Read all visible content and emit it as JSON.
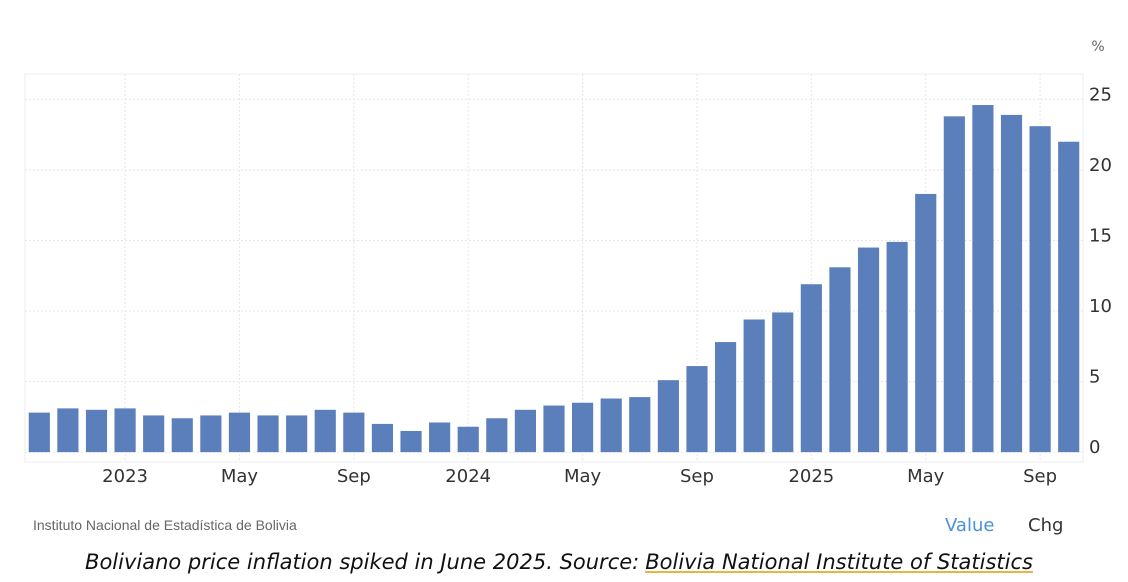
{
  "chart_data": {
    "type": "bar",
    "unit": "%",
    "categories": [
      null,
      null,
      null,
      "2023",
      null,
      null,
      null,
      "May",
      null,
      null,
      null,
      "Sep",
      null,
      null,
      null,
      "2024",
      null,
      null,
      null,
      "May",
      null,
      null,
      null,
      "Sep",
      null,
      null,
      null,
      "2025",
      null,
      null,
      null,
      "May",
      null,
      null,
      null,
      "Sep",
      null
    ],
    "values": [
      2.8,
      3.1,
      3.0,
      3.1,
      2.6,
      2.4,
      2.6,
      2.8,
      2.6,
      2.6,
      3.0,
      2.8,
      2.0,
      1.5,
      2.1,
      1.8,
      2.4,
      3.0,
      3.3,
      3.5,
      3.8,
      3.9,
      5.1,
      6.1,
      7.8,
      9.4,
      9.9,
      11.9,
      13.1,
      14.5,
      14.9,
      18.3,
      23.8,
      24.6,
      23.9,
      23.1,
      22.0
    ],
    "color": "#5b7fbb",
    "ylim": [
      -0.7,
      26.8
    ],
    "yticks": [
      0,
      5,
      10,
      15,
      20,
      25
    ],
    "grid": true,
    "source": "Instituto Nacional de Estadística de Bolivia",
    "buttons": [
      "Value",
      "Chg"
    ]
  },
  "caption": {
    "text": "Boliviano price inflation spiked in June 2025. Source:",
    "link": "Bolivia National Institute of Statistics"
  }
}
